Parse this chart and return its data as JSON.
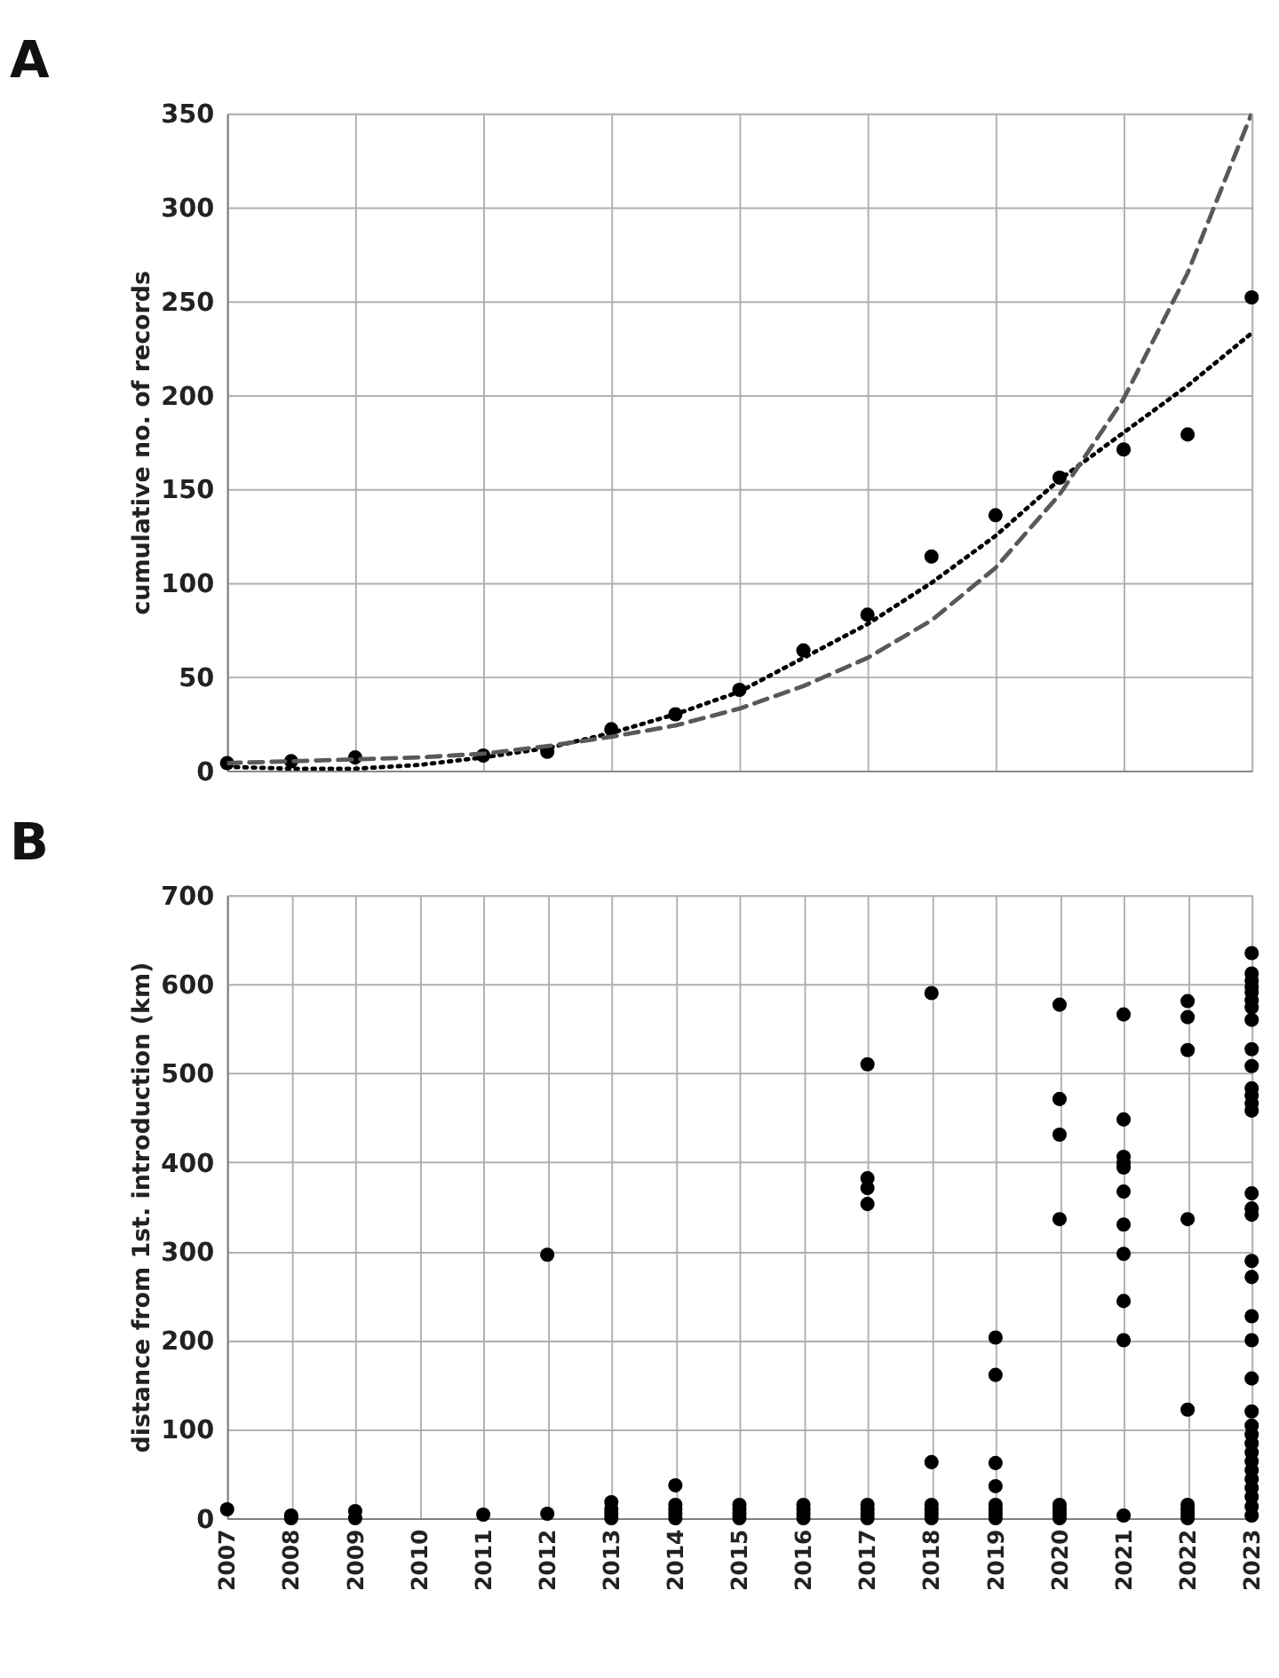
{
  "chart_data": [
    {
      "type": "scatter",
      "title": "A",
      "ylabel": "cumulative no. of records",
      "xlim": [
        2007,
        2023
      ],
      "xticks": [
        2007,
        2008,
        2009,
        2010,
        2011,
        2012,
        2013,
        2014,
        2015,
        2016,
        2017,
        2018,
        2019,
        2020,
        2021,
        2022,
        2023
      ],
      "ylim": [
        0,
        350
      ],
      "yticks": [
        0,
        50,
        100,
        150,
        200,
        250,
        300,
        350
      ],
      "grid": true,
      "tick_labels": "y",
      "marker": "circle",
      "series": [
        {
          "color": "#000000",
          "x": [
            2007,
            2008,
            2009,
            2011,
            2012,
            2013,
            2014,
            2015,
            2016,
            2017,
            2018,
            2019,
            2020,
            2021,
            2022,
            2023
          ],
          "values": [
            4,
            5,
            7,
            8,
            10,
            22,
            30,
            43,
            64,
            83,
            114,
            136,
            156,
            171,
            179,
            252
          ]
        },
        {
          "type": "line",
          "color": "#000000",
          "line_style": "dotted",
          "marker": "none",
          "x": [
            2007,
            2008,
            2009,
            2010,
            2011,
            2012,
            2013,
            2014,
            2015,
            2016,
            2017,
            2018,
            2019,
            2020,
            2021,
            2022,
            2023
          ],
          "values": [
            2,
            1,
            1,
            3,
            7,
            12,
            20,
            30,
            42,
            60,
            78,
            100,
            125,
            155,
            180,
            205,
            233
          ]
        },
        {
          "type": "line",
          "color": "#595959",
          "line_style": "dashed",
          "marker": "none",
          "x": [
            2007,
            2008,
            2009,
            2010,
            2011,
            2012,
            2013,
            2014,
            2015,
            2016,
            2017,
            2018,
            2019,
            2020,
            2021,
            2022,
            2023
          ],
          "values": [
            4,
            5,
            6,
            7,
            9,
            13,
            18,
            24,
            33,
            45,
            60,
            80,
            108,
            147,
            198,
            265,
            350
          ]
        }
      ]
    },
    {
      "type": "scatter",
      "title": "B",
      "ylabel": "distance from 1st. introduction (km)",
      "xlim": [
        2007,
        2023
      ],
      "xticks": [
        2007,
        2008,
        2009,
        2010,
        2011,
        2012,
        2013,
        2014,
        2015,
        2016,
        2017,
        2018,
        2019,
        2020,
        2021,
        2022,
        2023
      ],
      "ylim": [
        0,
        700
      ],
      "yticks": [
        0,
        100,
        200,
        300,
        400,
        500,
        600,
        700
      ],
      "grid": true,
      "marker": "circle",
      "series": [
        {
          "color": "#000000",
          "x": [
            2007,
            2008,
            2008,
            2009,
            2009,
            2011,
            2012,
            2012,
            2013,
            2013,
            2013,
            2013,
            2014,
            2014,
            2014,
            2014,
            2014,
            2015,
            2015,
            2015,
            2015,
            2016,
            2016,
            2016,
            2016,
            2017,
            2017,
            2017,
            2017,
            2017,
            2017,
            2017,
            2017,
            2018,
            2018,
            2018,
            2018,
            2018,
            2018,
            2019,
            2019,
            2019,
            2019,
            2019,
            2019,
            2019,
            2019,
            2020,
            2020,
            2020,
            2020,
            2020,
            2020,
            2020,
            2020,
            2021,
            2021,
            2021,
            2021,
            2021,
            2021,
            2021,
            2021,
            2021,
            2021,
            2021,
            2022,
            2022,
            2022,
            2022,
            2022,
            2022,
            2022,
            2022,
            2022,
            2023,
            2023,
            2023,
            2023,
            2023,
            2023,
            2023,
            2023,
            2023,
            2023,
            2023,
            2023,
            2023,
            2023,
            2023,
            2023,
            2023,
            2023,
            2023,
            2023,
            2023,
            2023,
            2023,
            2023,
            2023,
            2023,
            2023,
            2023,
            2023,
            2023,
            2023,
            2023,
            2023,
            2023
          ],
          "values": [
            10,
            0,
            3,
            0,
            8,
            4,
            296,
            5,
            0,
            5,
            10,
            18,
            0,
            5,
            10,
            15,
            37,
            0,
            5,
            10,
            15,
            0,
            5,
            10,
            15,
            510,
            382,
            371,
            353,
            0,
            5,
            10,
            15,
            590,
            63,
            0,
            5,
            10,
            15,
            203,
            161,
            62,
            36,
            0,
            5,
            10,
            15,
            577,
            471,
            431,
            336,
            0,
            5,
            10,
            15,
            566,
            448,
            406,
            399,
            394,
            367,
            330,
            297,
            244,
            200,
            3,
            581,
            563,
            526,
            336,
            122,
            0,
            5,
            10,
            15,
            635,
            612,
            604,
            597,
            591,
            582,
            574,
            560,
            527,
            508,
            483,
            475,
            466,
            458,
            365,
            348,
            341,
            289,
            271,
            227,
            200,
            157,
            120,
            104,
            94,
            84,
            74,
            64,
            54,
            44,
            34,
            24,
            13,
            3
          ]
        }
      ]
    }
  ]
}
